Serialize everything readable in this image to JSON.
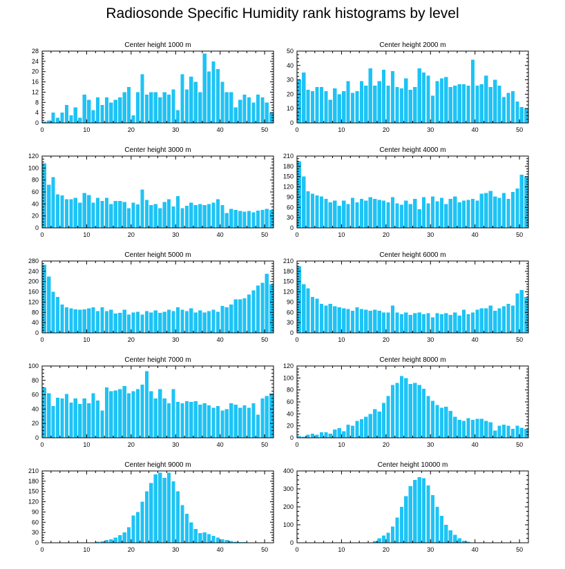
{
  "page_title": "Radiosonde Specific Humidity rank histograms by level",
  "bar_color": "#1ec3f5",
  "chart_data": [
    {
      "type": "bar",
      "title": "Center height 1000 m",
      "xlabel": "",
      "ylabel": "",
      "xlim": [
        0,
        52
      ],
      "ylim": [
        0,
        28
      ],
      "xticks": [
        0,
        10,
        20,
        30,
        40,
        50
      ],
      "yticks": [
        0,
        4,
        8,
        12,
        16,
        20,
        24,
        28
      ],
      "x": [
        0,
        1,
        2,
        3,
        4,
        5,
        6,
        7,
        8,
        9,
        10,
        11,
        12,
        13,
        14,
        15,
        16,
        17,
        18,
        19,
        20,
        21,
        22,
        23,
        24,
        25,
        26,
        27,
        28,
        29,
        30,
        31,
        32,
        33,
        34,
        35,
        36,
        37,
        38,
        39,
        40,
        41,
        42,
        43,
        44,
        45,
        46,
        47,
        48,
        49,
        50,
        51
      ],
      "values": [
        0.5,
        1,
        4,
        2,
        4,
        7,
        3,
        6,
        2,
        11,
        9,
        5,
        10,
        7,
        10,
        8,
        9,
        10,
        12,
        14,
        3,
        12,
        19,
        11,
        12,
        12,
        10,
        12,
        11,
        13,
        5,
        19,
        13,
        18,
        16,
        12,
        27,
        20,
        24,
        21,
        16,
        12,
        12,
        6,
        9,
        11,
        10,
        8,
        11,
        10,
        8,
        4
      ]
    },
    {
      "type": "bar",
      "title": "Center height 2000 m",
      "xlabel": "",
      "ylabel": "",
      "xlim": [
        0,
        52
      ],
      "ylim": [
        0,
        50
      ],
      "xticks": [
        0,
        10,
        20,
        30,
        40,
        50
      ],
      "yticks": [
        0,
        10,
        20,
        30,
        40,
        50
      ],
      "x": [
        0,
        1,
        2,
        3,
        4,
        5,
        6,
        7,
        8,
        9,
        10,
        11,
        12,
        13,
        14,
        15,
        16,
        17,
        18,
        19,
        20,
        21,
        22,
        23,
        24,
        25,
        26,
        27,
        28,
        29,
        30,
        31,
        32,
        33,
        34,
        35,
        36,
        37,
        38,
        39,
        40,
        41,
        42,
        43,
        44,
        45,
        46,
        47,
        48,
        49,
        50,
        51
      ],
      "values": [
        30,
        35,
        23,
        22,
        25,
        25,
        22,
        16,
        24,
        20,
        22,
        29,
        21,
        22,
        29,
        26,
        38,
        26,
        29,
        37,
        26,
        36,
        25,
        24,
        31,
        23,
        25,
        38,
        35,
        33,
        19,
        29,
        31,
        32,
        25,
        26,
        27,
        27,
        26,
        44,
        26,
        27,
        33,
        25,
        30,
        26,
        18,
        21,
        22,
        15,
        11,
        10
      ]
    },
    {
      "type": "bar",
      "title": "Center height 3000 m",
      "xlabel": "",
      "ylabel": "",
      "xlim": [
        0,
        52
      ],
      "ylim": [
        0,
        120
      ],
      "xticks": [
        0,
        10,
        20,
        30,
        40,
        50
      ],
      "yticks": [
        0,
        20,
        40,
        60,
        80,
        100,
        120
      ],
      "x": [
        0,
        1,
        2,
        3,
        4,
        5,
        6,
        7,
        8,
        9,
        10,
        11,
        12,
        13,
        14,
        15,
        16,
        17,
        18,
        19,
        20,
        21,
        22,
        23,
        24,
        25,
        26,
        27,
        28,
        29,
        30,
        31,
        32,
        33,
        34,
        35,
        36,
        37,
        38,
        39,
        40,
        41,
        42,
        43,
        44,
        45,
        46,
        47,
        48,
        49,
        50,
        51
      ],
      "values": [
        108,
        72,
        85,
        56,
        54,
        48,
        48,
        50,
        42,
        58,
        55,
        42,
        50,
        45,
        50,
        40,
        45,
        45,
        43,
        33,
        42,
        39,
        64,
        47,
        38,
        40,
        33,
        43,
        48,
        36,
        53,
        33,
        37,
        42,
        38,
        40,
        38,
        40,
        42,
        48,
        38,
        25,
        32,
        30,
        28,
        27,
        28,
        26,
        29,
        30,
        32,
        30
      ]
    },
    {
      "type": "bar",
      "title": "Center height 4000 m",
      "xlabel": "",
      "ylabel": "",
      "xlim": [
        0,
        52
      ],
      "ylim": [
        0,
        210
      ],
      "xticks": [
        0,
        10,
        20,
        30,
        40,
        50
      ],
      "yticks": [
        0,
        30,
        60,
        90,
        120,
        150,
        180,
        210
      ],
      "x": [
        0,
        1,
        2,
        3,
        4,
        5,
        6,
        7,
        8,
        9,
        10,
        11,
        12,
        13,
        14,
        15,
        16,
        17,
        18,
        19,
        20,
        21,
        22,
        23,
        24,
        25,
        26,
        27,
        28,
        29,
        30,
        31,
        32,
        33,
        34,
        35,
        36,
        37,
        38,
        39,
        40,
        41,
        42,
        43,
        44,
        45,
        46,
        47,
        48,
        49,
        50,
        51
      ],
      "values": [
        195,
        150,
        107,
        100,
        95,
        92,
        85,
        75,
        80,
        65,
        80,
        70,
        88,
        75,
        85,
        80,
        90,
        85,
        82,
        80,
        75,
        90,
        72,
        68,
        80,
        70,
        85,
        55,
        90,
        72,
        92,
        78,
        88,
        70,
        85,
        92,
        75,
        80,
        82,
        85,
        80,
        100,
        102,
        108,
        92,
        88,
        102,
        85,
        105,
        115,
        155,
        150
      ]
    },
    {
      "type": "bar",
      "title": "Center height 5000 m",
      "xlabel": "",
      "ylabel": "",
      "xlim": [
        0,
        52
      ],
      "ylim": [
        0,
        280
      ],
      "xticks": [
        0,
        10,
        20,
        30,
        40,
        50
      ],
      "yticks": [
        0,
        40,
        80,
        120,
        160,
        200,
        240,
        280
      ],
      "x": [
        0,
        1,
        2,
        3,
        4,
        5,
        6,
        7,
        8,
        9,
        10,
        11,
        12,
        13,
        14,
        15,
        16,
        17,
        18,
        19,
        20,
        21,
        22,
        23,
        24,
        25,
        26,
        27,
        28,
        29,
        30,
        31,
        32,
        33,
        34,
        35,
        36,
        37,
        38,
        39,
        40,
        41,
        42,
        43,
        44,
        45,
        46,
        47,
        48,
        49,
        50,
        51
      ],
      "values": [
        265,
        220,
        160,
        140,
        110,
        100,
        95,
        92,
        90,
        92,
        95,
        100,
        85,
        100,
        85,
        90,
        75,
        78,
        90,
        72,
        80,
        82,
        72,
        85,
        80,
        88,
        78,
        82,
        90,
        85,
        100,
        90,
        85,
        95,
        80,
        88,
        80,
        85,
        90,
        82,
        105,
        100,
        110,
        130,
        130,
        135,
        150,
        165,
        185,
        195,
        230,
        190
      ]
    },
    {
      "type": "bar",
      "title": "Center height 6000 m",
      "xlabel": "",
      "ylabel": "",
      "xlim": [
        0,
        52
      ],
      "ylim": [
        0,
        210
      ],
      "xticks": [
        0,
        10,
        20,
        30,
        40,
        50
      ],
      "yticks": [
        0,
        30,
        60,
        90,
        120,
        150,
        180,
        210
      ],
      "x": [
        0,
        1,
        2,
        3,
        4,
        5,
        6,
        7,
        8,
        9,
        10,
        11,
        12,
        13,
        14,
        15,
        16,
        17,
        18,
        19,
        20,
        21,
        22,
        23,
        24,
        25,
        26,
        27,
        28,
        29,
        30,
        31,
        32,
        33,
        34,
        35,
        36,
        37,
        38,
        39,
        40,
        41,
        42,
        43,
        44,
        45,
        46,
        47,
        48,
        49,
        50,
        51
      ],
      "values": [
        195,
        142,
        130,
        105,
        100,
        85,
        80,
        85,
        78,
        75,
        72,
        70,
        65,
        75,
        70,
        68,
        65,
        68,
        65,
        60,
        60,
        80,
        60,
        55,
        60,
        52,
        58,
        60,
        55,
        58,
        45,
        58,
        55,
        58,
        52,
        60,
        50,
        68,
        55,
        60,
        68,
        72,
        72,
        80,
        65,
        72,
        78,
        85,
        80,
        115,
        125,
        105
      ]
    },
    {
      "type": "bar",
      "title": "Center height 7000 m",
      "xlabel": "",
      "ylabel": "",
      "xlim": [
        0,
        52
      ],
      "ylim": [
        0,
        100
      ],
      "xticks": [
        0,
        10,
        20,
        30,
        40,
        50
      ],
      "yticks": [
        0,
        20,
        40,
        60,
        80,
        100
      ],
      "x": [
        0,
        1,
        2,
        3,
        4,
        5,
        6,
        7,
        8,
        9,
        10,
        11,
        12,
        13,
        14,
        15,
        16,
        17,
        18,
        19,
        20,
        21,
        22,
        23,
        24,
        25,
        26,
        27,
        28,
        29,
        30,
        31,
        32,
        33,
        34,
        35,
        36,
        37,
        38,
        39,
        40,
        41,
        42,
        43,
        44,
        45,
        46,
        47,
        48,
        49,
        50,
        51
      ],
      "values": [
        70,
        62,
        44,
        56,
        55,
        61,
        49,
        55,
        47,
        55,
        48,
        62,
        52,
        38,
        70,
        65,
        66,
        68,
        72,
        62,
        65,
        68,
        74,
        93,
        65,
        55,
        68,
        55,
        48,
        68,
        50,
        48,
        51,
        50,
        51,
        46,
        48,
        45,
        42,
        44,
        38,
        40,
        48,
        46,
        42,
        45,
        42,
        48,
        32,
        55,
        58,
        62
      ]
    },
    {
      "type": "bar",
      "title": "Center height 8000 m",
      "xlabel": "",
      "ylabel": "",
      "xlim": [
        0,
        52
      ],
      "ylim": [
        0,
        120
      ],
      "xticks": [
        0,
        10,
        20,
        30,
        40,
        50
      ],
      "yticks": [
        0,
        20,
        40,
        60,
        80,
        100,
        120
      ],
      "x": [
        0,
        1,
        2,
        3,
        4,
        5,
        6,
        7,
        8,
        9,
        10,
        11,
        12,
        13,
        14,
        15,
        16,
        17,
        18,
        19,
        20,
        21,
        22,
        23,
        24,
        25,
        26,
        27,
        28,
        29,
        30,
        31,
        32,
        33,
        34,
        35,
        36,
        37,
        38,
        39,
        40,
        41,
        42,
        43,
        44,
        45,
        46,
        47,
        48,
        49,
        50,
        51
      ],
      "values": [
        3,
        2,
        5,
        7,
        5,
        9,
        9,
        7,
        14,
        16,
        11,
        22,
        20,
        28,
        31,
        35,
        40,
        48,
        44,
        58,
        70,
        88,
        92,
        103,
        100,
        90,
        92,
        88,
        82,
        70,
        62,
        55,
        50,
        52,
        45,
        35,
        30,
        28,
        33,
        30,
        32,
        32,
        28,
        26,
        12,
        20,
        22,
        20,
        15,
        20,
        17,
        15
      ]
    },
    {
      "type": "bar",
      "title": "Center height 9000 m",
      "xlabel": "",
      "ylabel": "",
      "xlim": [
        0,
        52
      ],
      "ylim": [
        0,
        210
      ],
      "xticks": [
        0,
        10,
        20,
        30,
        40,
        50
      ],
      "yticks": [
        0,
        30,
        60,
        90,
        120,
        150,
        180,
        210
      ],
      "x": [
        0,
        1,
        2,
        3,
        4,
        5,
        6,
        7,
        8,
        9,
        10,
        11,
        12,
        13,
        14,
        15,
        16,
        17,
        18,
        19,
        20,
        21,
        22,
        23,
        24,
        25,
        26,
        27,
        28,
        29,
        30,
        31,
        32,
        33,
        34,
        35,
        36,
        37,
        38,
        39,
        40,
        41,
        42,
        43,
        44,
        45,
        46,
        47,
        48,
        49,
        50,
        51
      ],
      "values": [
        0,
        0,
        0,
        0,
        0,
        0,
        0,
        0,
        0,
        0,
        1,
        1,
        3,
        4,
        8,
        10,
        15,
        22,
        30,
        45,
        80,
        90,
        120,
        150,
        175,
        200,
        205,
        190,
        205,
        180,
        150,
        110,
        85,
        60,
        40,
        28,
        30,
        25,
        20,
        15,
        10,
        8,
        5,
        3,
        2,
        2,
        1,
        1,
        0,
        0,
        0,
        0
      ]
    },
    {
      "type": "bar",
      "title": "Center height 10000 m",
      "xlabel": "",
      "ylabel": "",
      "xlim": [
        0,
        52
      ],
      "ylim": [
        0,
        400
      ],
      "xticks": [
        0,
        10,
        20,
        30,
        40,
        50
      ],
      "yticks": [
        0,
        100,
        200,
        300,
        400
      ],
      "x": [
        0,
        1,
        2,
        3,
        4,
        5,
        6,
        7,
        8,
        9,
        10,
        11,
        12,
        13,
        14,
        15,
        16,
        17,
        18,
        19,
        20,
        21,
        22,
        23,
        24,
        25,
        26,
        27,
        28,
        29,
        30,
        31,
        32,
        33,
        34,
        35,
        36,
        37,
        38,
        39,
        40,
        41,
        42,
        43,
        44,
        45,
        46,
        47,
        48,
        49,
        50,
        51
      ],
      "values": [
        0,
        0,
        0,
        0,
        0,
        0,
        0,
        0,
        0,
        0,
        0,
        0,
        0,
        0,
        0,
        0,
        2,
        10,
        25,
        40,
        55,
        90,
        140,
        200,
        260,
        315,
        350,
        365,
        360,
        320,
        265,
        200,
        150,
        100,
        70,
        45,
        25,
        12,
        5,
        2,
        0,
        0,
        0,
        0,
        0,
        0,
        0,
        0,
        0,
        0,
        0,
        0
      ]
    }
  ]
}
